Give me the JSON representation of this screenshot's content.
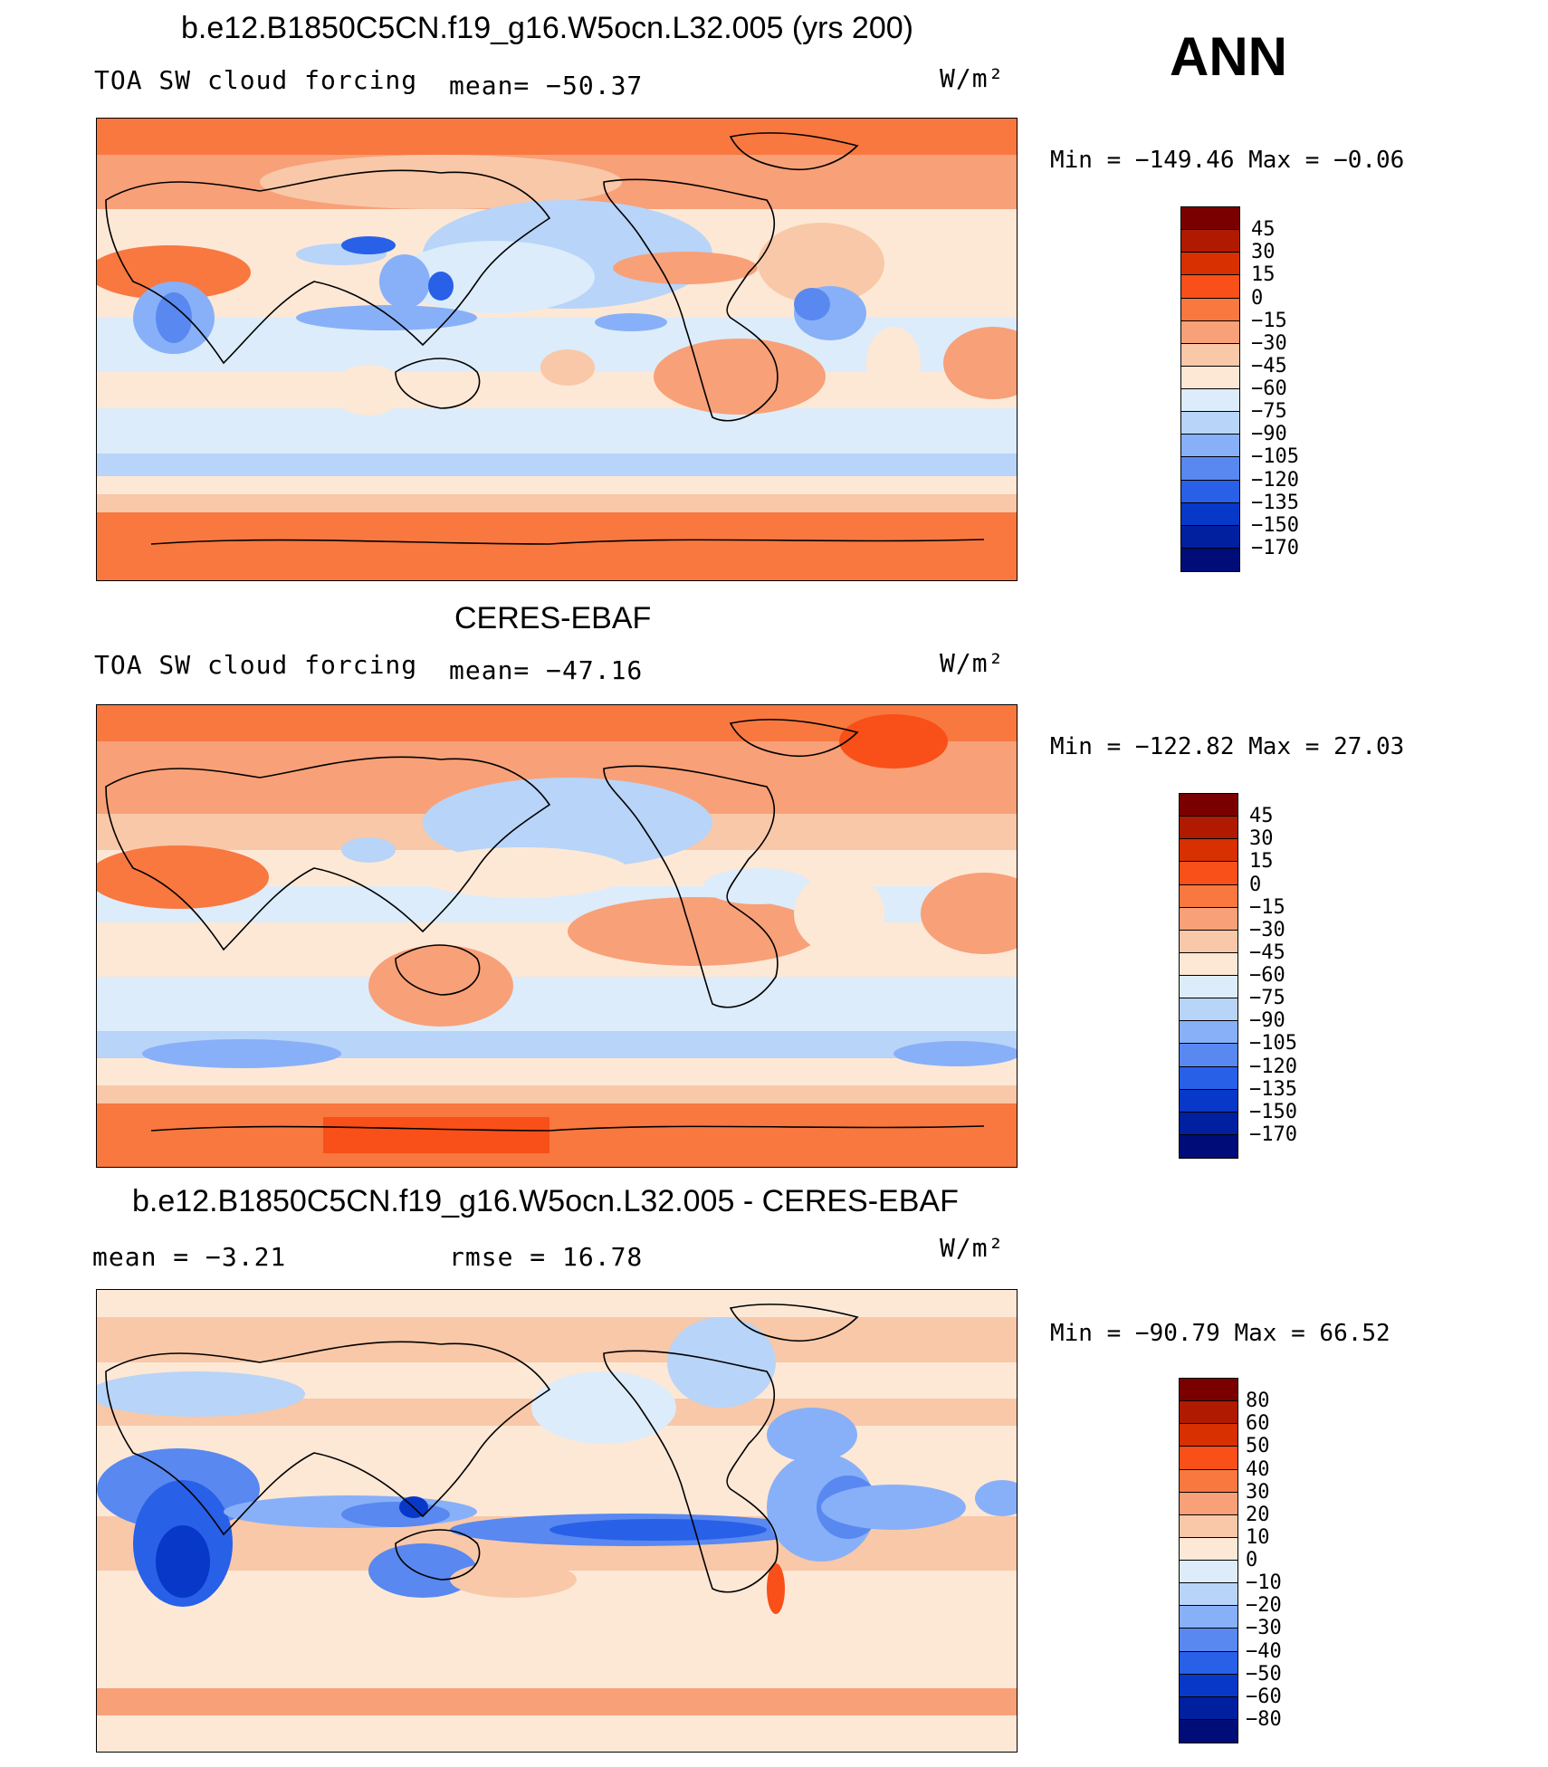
{
  "season": "ANN",
  "panels": [
    {
      "title": "b.e12.B1850C5CN.f19_g16.W5ocn.L32.005 (yrs 200)",
      "left_label": "TOA SW cloud forcing",
      "stat_text": "mean= −50.37",
      "units": "W/m²",
      "minmax_text": "Min = −149.46 Max =  −0.06"
    },
    {
      "title": "CERES-EBAF",
      "left_label": "TOA SW cloud forcing",
      "stat_text": "mean= −47.16",
      "units": "W/m²",
      "minmax_text": "Min = −122.82 Max =  27.03"
    },
    {
      "title": "b.e12.B1850C5CN.f19_g16.W5ocn.L32.005 - CERES-EBAF",
      "left_label": "mean =  −3.21",
      "stat_text": "rmse =  16.78",
      "units": "W/m²",
      "minmax_text": "Min = −90.79 Max =  66.52"
    }
  ],
  "colorbar_main": {
    "labels": [
      "45",
      "30",
      "15",
      "0",
      "−15",
      "−30",
      "−45",
      "−60",
      "−75",
      "−90",
      "−105",
      "−120",
      "−135",
      "−150",
      "−170"
    ],
    "colors": [
      "#7a0000",
      "#b01a00",
      "#d83000",
      "#f85018",
      "#f87840",
      "#f8a078",
      "#f8c8a8",
      "#fde8d6",
      "#dcecfa",
      "#b8d4f8",
      "#88b0f8",
      "#5888f0",
      "#2860e8",
      "#0838c8",
      "#0020a0",
      "#000c78"
    ]
  },
  "colorbar_diff": {
    "labels": [
      "80",
      "60",
      "50",
      "40",
      "30",
      "20",
      "10",
      "0",
      "−10",
      "−20",
      "−30",
      "−40",
      "−50",
      "−60",
      "−80"
    ],
    "colors": [
      "#7a0000",
      "#b01a00",
      "#d83000",
      "#f85018",
      "#f87840",
      "#f8a078",
      "#f8c8a8",
      "#fde8d6",
      "#dcecfa",
      "#b8d4f8",
      "#88b0f8",
      "#5888f0",
      "#2860e8",
      "#0838c8",
      "#0020a0",
      "#000c78"
    ]
  },
  "chart_data": [
    {
      "type": "heatmap",
      "title": "b.e12.B1850C5CN.f19_g16.W5ocn.L32.005 (yrs 200)",
      "variable": "TOA SW cloud forcing",
      "units": "W/m2",
      "mean": -50.37,
      "min": -149.46,
      "max": -0.06,
      "levels": [
        45,
        30,
        15,
        0,
        -15,
        -30,
        -45,
        -60,
        -75,
        -90,
        -105,
        -120,
        -135,
        -150,
        -170
      ]
    },
    {
      "type": "heatmap",
      "title": "CERES-EBAF",
      "variable": "TOA SW cloud forcing",
      "units": "W/m2",
      "mean": -47.16,
      "min": -122.82,
      "max": 27.03,
      "levels": [
        45,
        30,
        15,
        0,
        -15,
        -30,
        -45,
        -60,
        -75,
        -90,
        -105,
        -120,
        -135,
        -150,
        -170
      ]
    },
    {
      "type": "heatmap",
      "title": "b.e12.B1850C5CN.f19_g16.W5ocn.L32.005 - CERES-EBAF",
      "units": "W/m2",
      "mean": -3.21,
      "rmse": 16.78,
      "min": -90.79,
      "max": 66.52,
      "levels": [
        80,
        60,
        50,
        40,
        30,
        20,
        10,
        0,
        -10,
        -20,
        -30,
        -40,
        -50,
        -60,
        -80
      ]
    }
  ]
}
